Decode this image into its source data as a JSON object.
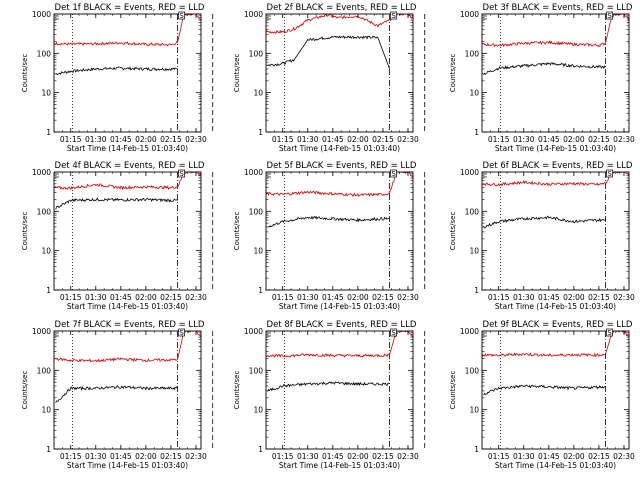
{
  "figure": {
    "background": "#ffffff",
    "axis_color": "#000000"
  },
  "colors": {
    "events": "#000000",
    "lld": "#d00000"
  },
  "chart_data": [
    {
      "type": "line",
      "title": "Det 1f BLACK = Events, RED = LLD",
      "xlabel": "Start Time (14-Feb-15 01:03:40)",
      "ylabel": "Counts/sec",
      "y_scale": "log",
      "ylim": [
        1,
        1000
      ],
      "y_ticks": [
        "1",
        "10",
        "100",
        "1000"
      ],
      "x_ticks": [
        "01:15",
        "01:30",
        "01:45",
        "02:00",
        "02:15",
        "02:30"
      ],
      "legend_marker": "S",
      "grid": false,
      "markers": {
        "dotted_line": "01:16",
        "dashdot_line": "02:19",
        "dashed_line": "02:40"
      },
      "series": [
        {
          "name": "Events",
          "color": "#000000",
          "x": [
            "01:05",
            "01:06",
            "01:15",
            "01:30",
            "01:45",
            "02:00",
            "02:15",
            "02:19"
          ],
          "y": [
            null,
            30,
            35,
            40,
            42,
            40,
            40,
            40
          ]
        },
        {
          "name": "LLD",
          "color": "#d00000",
          "x": [
            "01:05",
            "01:15",
            "01:30",
            "01:45",
            "02:00",
            "02:15",
            "02:19",
            "02:22",
            "02:24",
            "02:30",
            "02:33"
          ],
          "y": [
            180,
            170,
            175,
            185,
            170,
            165,
            190,
            700,
            1000,
            1000,
            700
          ]
        }
      ]
    },
    {
      "type": "line",
      "title": "Det 2f BLACK = Events, RED = LLD",
      "xlabel": "Start Time (14-Feb-15 01:03:40)",
      "ylabel": "Counts/sec",
      "y_scale": "log",
      "ylim": [
        1,
        1000
      ],
      "y_ticks": [
        "1",
        "10",
        "100",
        "1000"
      ],
      "x_ticks": [
        "01:15",
        "01:30",
        "01:45",
        "02:00",
        "02:15",
        "02:30"
      ],
      "legend_marker": "S",
      "grid": false,
      "markers": {
        "dotted_line": "01:16",
        "dashdot_line": "02:19",
        "dashed_line": "02:40"
      },
      "series": [
        {
          "name": "Events",
          "color": "#000000",
          "x": [
            "01:06",
            "01:15",
            "01:22",
            "01:30",
            "01:45",
            "02:00",
            "02:12",
            "02:19"
          ],
          "y": [
            50,
            55,
            70,
            220,
            260,
            260,
            250,
            40
          ]
        },
        {
          "name": "LLD",
          "color": "#d00000",
          "x": [
            "01:05",
            "01:15",
            "01:22",
            "01:30",
            "01:42",
            "01:48",
            "02:00",
            "02:12",
            "02:19",
            "02:22",
            "02:24",
            "02:30",
            "02:34"
          ],
          "y": [
            350,
            350,
            420,
            700,
            950,
            800,
            900,
            500,
            700,
            1000,
            1000,
            1000,
            700
          ]
        }
      ]
    },
    {
      "type": "line",
      "title": "Det 3f BLACK = Events, RED = LLD",
      "xlabel": "Start Time (14-Feb-15 01:03:40)",
      "ylabel": "Counts/sec",
      "y_scale": "log",
      "ylim": [
        1,
        1000
      ],
      "y_ticks": [
        "1",
        "10",
        "100",
        "1000"
      ],
      "x_ticks": [
        "01:15",
        "01:30",
        "01:45",
        "02:00",
        "02:15",
        "02:30"
      ],
      "legend_marker": "S",
      "grid": false,
      "markers": {
        "dotted_line": "01:16",
        "dashdot_line": "02:19",
        "dashed_line": "02:40"
      },
      "series": [
        {
          "name": "Events",
          "color": "#000000",
          "x": [
            "01:06",
            "01:15",
            "01:30",
            "01:45",
            "02:00",
            "02:15",
            "02:19"
          ],
          "y": [
            30,
            42,
            48,
            55,
            48,
            45,
            45
          ]
        },
        {
          "name": "LLD",
          "color": "#d00000",
          "x": [
            "01:05",
            "01:15",
            "01:30",
            "01:45",
            "02:00",
            "02:15",
            "02:19",
            "02:22",
            "02:24",
            "02:30",
            "02:33"
          ],
          "y": [
            170,
            160,
            180,
            190,
            170,
            160,
            180,
            700,
            1000,
            1000,
            700
          ]
        }
      ]
    },
    {
      "type": "line",
      "title": "Det 4f BLACK = Events, RED = LLD",
      "xlabel": "Start Time (14-Feb-15 01:03:40)",
      "ylabel": "Counts/sec",
      "y_scale": "log",
      "ylim": [
        1,
        1000
      ],
      "y_ticks": [
        "1",
        "10",
        "100",
        "1000"
      ],
      "x_ticks": [
        "01:15",
        "01:30",
        "01:45",
        "02:00",
        "02:15",
        "02:30"
      ],
      "legend_marker": "S",
      "grid": false,
      "markers": {
        "dotted_line": "01:16",
        "dashdot_line": "02:19",
        "dashed_line": "02:40"
      },
      "series": [
        {
          "name": "Events",
          "color": "#000000",
          "x": [
            "01:06",
            "01:15",
            "01:30",
            "01:45",
            "02:00",
            "02:15",
            "02:19"
          ],
          "y": [
            120,
            190,
            200,
            195,
            200,
            190,
            190
          ]
        },
        {
          "name": "LLD",
          "color": "#d00000",
          "x": [
            "01:05",
            "01:15",
            "01:30",
            "01:45",
            "02:00",
            "02:15",
            "02:19",
            "02:22",
            "02:24",
            "02:30",
            "02:33"
          ],
          "y": [
            400,
            390,
            480,
            400,
            420,
            400,
            420,
            800,
            1000,
            1000,
            800
          ]
        }
      ]
    },
    {
      "type": "line",
      "title": "Det 5f BLACK = Events, RED = LLD",
      "xlabel": "Start Time (14-Feb-15 01:03:40)",
      "ylabel": "Counts/sec",
      "y_scale": "log",
      "ylim": [
        1,
        1000
      ],
      "y_ticks": [
        "1",
        "10",
        "100",
        "1000"
      ],
      "x_ticks": [
        "01:15",
        "01:30",
        "01:45",
        "02:00",
        "02:15",
        "02:30"
      ],
      "legend_marker": "S",
      "grid": false,
      "markers": {
        "dotted_line": "01:16",
        "dashdot_line": "02:19",
        "dashed_line": "02:40"
      },
      "series": [
        {
          "name": "Events",
          "color": "#000000",
          "x": [
            "01:06",
            "01:15",
            "01:30",
            "01:45",
            "02:00",
            "02:15",
            "02:19"
          ],
          "y": [
            40,
            55,
            70,
            65,
            60,
            65,
            65
          ]
        },
        {
          "name": "LLD",
          "color": "#d00000",
          "x": [
            "01:05",
            "01:15",
            "01:30",
            "01:45",
            "02:00",
            "02:15",
            "02:19",
            "02:22",
            "02:24",
            "02:30",
            "02:33"
          ],
          "y": [
            280,
            270,
            310,
            280,
            260,
            270,
            290,
            700,
            1000,
            1000,
            700
          ]
        }
      ]
    },
    {
      "type": "line",
      "title": "Det 6f BLACK = Events, RED = LLD",
      "xlabel": "Start Time (14-Feb-15 01:03:40)",
      "ylabel": "Counts/sec",
      "y_scale": "log",
      "ylim": [
        1,
        1000
      ],
      "y_ticks": [
        "1",
        "10",
        "100",
        "1000"
      ],
      "x_ticks": [
        "01:15",
        "01:30",
        "01:45",
        "02:00",
        "02:15",
        "02:30"
      ],
      "legend_marker": "S",
      "grid": false,
      "markers": {
        "dotted_line": "01:16",
        "dashdot_line": "02:19",
        "dashed_line": "02:40"
      },
      "series": [
        {
          "name": "Events",
          "color": "#000000",
          "x": [
            "01:06",
            "01:15",
            "01:30",
            "01:45",
            "02:00",
            "02:15",
            "02:19"
          ],
          "y": [
            40,
            55,
            65,
            70,
            55,
            60,
            60
          ]
        },
        {
          "name": "LLD",
          "color": "#d00000",
          "x": [
            "01:05",
            "01:15",
            "01:30",
            "01:45",
            "02:00",
            "02:15",
            "02:19",
            "02:22",
            "02:24",
            "02:30",
            "02:33"
          ],
          "y": [
            500,
            480,
            550,
            490,
            510,
            480,
            520,
            800,
            1000,
            1000,
            800
          ]
        }
      ]
    },
    {
      "type": "line",
      "title": "Det 7f BLACK = Events, RED = LLD",
      "xlabel": "Start Time (14-Feb-15 01:03:40)",
      "ylabel": "Counts/sec",
      "y_scale": "log",
      "ylim": [
        1,
        1000
      ],
      "y_ticks": [
        "1",
        "10",
        "100",
        "1000"
      ],
      "x_ticks": [
        "01:15",
        "01:30",
        "01:45",
        "02:00",
        "02:15",
        "02:30"
      ],
      "legend_marker": "S",
      "grid": false,
      "markers": {
        "dotted_line": "01:16",
        "dashdot_line": "02:19",
        "dashed_line": "02:40"
      },
      "series": [
        {
          "name": "Events",
          "color": "#000000",
          "x": [
            "01:06",
            "01:15",
            "01:30",
            "01:45",
            "02:00",
            "02:15",
            "02:19"
          ],
          "y": [
            15,
            35,
            35,
            38,
            35,
            35,
            35
          ]
        },
        {
          "name": "LLD",
          "color": "#d00000",
          "x": [
            "01:05",
            "01:15",
            "01:30",
            "01:45",
            "02:00",
            "02:15",
            "02:19",
            "02:22",
            "02:24",
            "02:30",
            "02:33"
          ],
          "y": [
            200,
            180,
            175,
            195,
            180,
            185,
            190,
            700,
            1000,
            1000,
            700
          ]
        }
      ]
    },
    {
      "type": "line",
      "title": "Det 8f BLACK = Events, RED = LLD",
      "xlabel": "Start Time (14-Feb-15 01:03:40)",
      "ylabel": "Counts/sec",
      "y_scale": "log",
      "ylim": [
        1,
        1000
      ],
      "y_ticks": [
        "1",
        "10",
        "100",
        "1000"
      ],
      "x_ticks": [
        "01:15",
        "01:30",
        "01:45",
        "02:00",
        "02:15",
        "02:30"
      ],
      "legend_marker": "S",
      "grid": false,
      "markers": {
        "dotted_line": "01:16",
        "dashdot_line": "02:19",
        "dashed_line": "02:40"
      },
      "series": [
        {
          "name": "Events",
          "color": "#000000",
          "x": [
            "01:06",
            "01:15",
            "01:30",
            "01:45",
            "02:00",
            "02:15",
            "02:19"
          ],
          "y": [
            30,
            40,
            45,
            48,
            45,
            45,
            45
          ]
        },
        {
          "name": "LLD",
          "color": "#d00000",
          "x": [
            "01:05",
            "01:15",
            "01:30",
            "01:45",
            "02:00",
            "02:15",
            "02:19",
            "02:22",
            "02:24",
            "02:30",
            "02:33"
          ],
          "y": [
            240,
            230,
            250,
            240,
            235,
            240,
            250,
            700,
            1000,
            1000,
            700
          ]
        }
      ]
    },
    {
      "type": "line",
      "title": "Det 9f BLACK = Events, RED = LLD",
      "xlabel": "Start Time (14-Feb-15 01:03:40)",
      "ylabel": "Counts/sec",
      "y_scale": "log",
      "ylim": [
        1,
        1000
      ],
      "y_ticks": [
        "1",
        "10",
        "100",
        "1000"
      ],
      "x_ticks": [
        "01:15",
        "01:30",
        "01:45",
        "02:00",
        "02:15",
        "02:30"
      ],
      "legend_marker": "S",
      "grid": false,
      "markers": {
        "dotted_line": "01:16",
        "dashdot_line": "02:19",
        "dashed_line": "02:40"
      },
      "series": [
        {
          "name": "Events",
          "color": "#000000",
          "x": [
            "01:06",
            "01:15",
            "01:30",
            "01:45",
            "02:00",
            "02:15",
            "02:19"
          ],
          "y": [
            25,
            35,
            40,
            38,
            35,
            38,
            38
          ]
        },
        {
          "name": "LLD",
          "color": "#d00000",
          "x": [
            "01:05",
            "01:15",
            "01:30",
            "01:45",
            "02:00",
            "02:15",
            "02:19",
            "02:22",
            "02:24",
            "02:30",
            "02:33"
          ],
          "y": [
            250,
            240,
            260,
            240,
            250,
            245,
            260,
            700,
            1000,
            1000,
            700
          ]
        }
      ]
    }
  ]
}
